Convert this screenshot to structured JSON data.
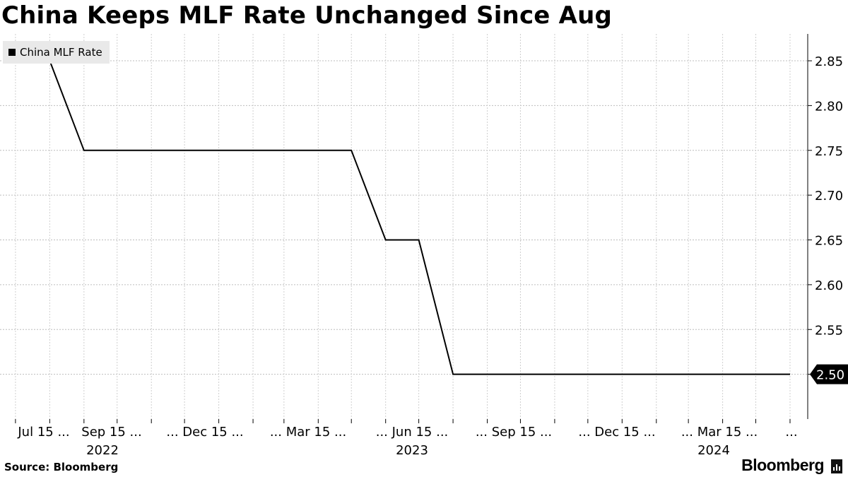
{
  "header": {
    "title": "China Keeps MLF Rate Unchanged Since Aug"
  },
  "footer": {
    "source": "Source: Bloomberg",
    "brand": "Bloomberg"
  },
  "chart_data": {
    "type": "line",
    "title": "China Keeps MLF Rate Unchanged Since Aug",
    "xlabel": "",
    "ylabel": "",
    "ylim": [
      2.45,
      2.88
    ],
    "grid": true,
    "legend": "top-left",
    "last_value_label": "2.50",
    "series": [
      {
        "name": "China MLF Rate",
        "color": "#000000",
        "x": [
          "2022-07-15",
          "2022-08-15",
          "2022-09-15",
          "2023-05-15",
          "2023-06-15",
          "2023-07-15",
          "2023-08-15",
          "2024-06-15"
        ],
        "y": [
          2.85,
          2.85,
          2.75,
          2.75,
          2.65,
          2.65,
          2.5,
          2.5
        ]
      }
    ],
    "y_ticks": [
      "2.85",
      "2.80",
      "2.75",
      "2.70",
      "2.65",
      "2.60",
      "2.55",
      "2.50"
    ],
    "x_tick_labels": [
      "Jul 15 ...",
      "Sep 15 ...",
      "... Dec 15 ...",
      "... Mar 15 ...",
      "... Jun 15 ...",
      "... Sep 15 ...",
      "... Dec 15 ...",
      "... Mar 15 ...",
      "..."
    ],
    "x_year_labels": [
      "2022",
      "2023",
      "2024"
    ]
  }
}
